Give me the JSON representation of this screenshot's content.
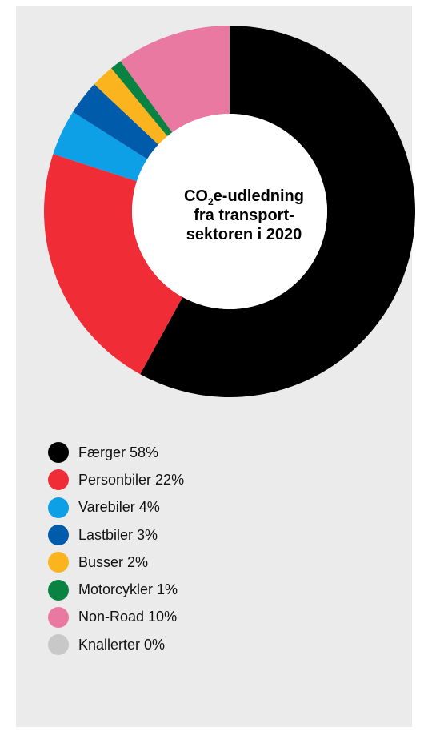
{
  "chart_data": {
    "type": "pie",
    "center_label": {
      "line1_prefix": "CO",
      "line1_sub": "2",
      "line1_suffix": "e-udledning",
      "line2": "fra transport-",
      "line3": "sektoren i 2020"
    },
    "slices": [
      {
        "name": "Færger",
        "value": 58,
        "legend": "Færger 58%",
        "color": "#000000"
      },
      {
        "name": "Personbiler",
        "value": 22,
        "legend": "Personbiler 22%",
        "color": "#f02d37"
      },
      {
        "name": "Varebiler",
        "value": 4,
        "legend": "Varebiler 4%",
        "color": "#0ea0e6"
      },
      {
        "name": "Lastbiler",
        "value": 3,
        "legend": "Lastbiler 3%",
        "color": "#005baa"
      },
      {
        "name": "Busser",
        "value": 2,
        "legend": "Busser 2%",
        "color": "#fbb41e"
      },
      {
        "name": "Motorcykler",
        "value": 1,
        "legend": "Motorcykler 1%",
        "color": "#0a8241"
      },
      {
        "name": "Non-Road",
        "value": 10,
        "legend": "Non-Road 10%",
        "color": "#e979a0"
      },
      {
        "name": "Knallerter",
        "value": 0,
        "legend": "Knallerter 0%",
        "color": "#c8c8c8"
      }
    ]
  }
}
